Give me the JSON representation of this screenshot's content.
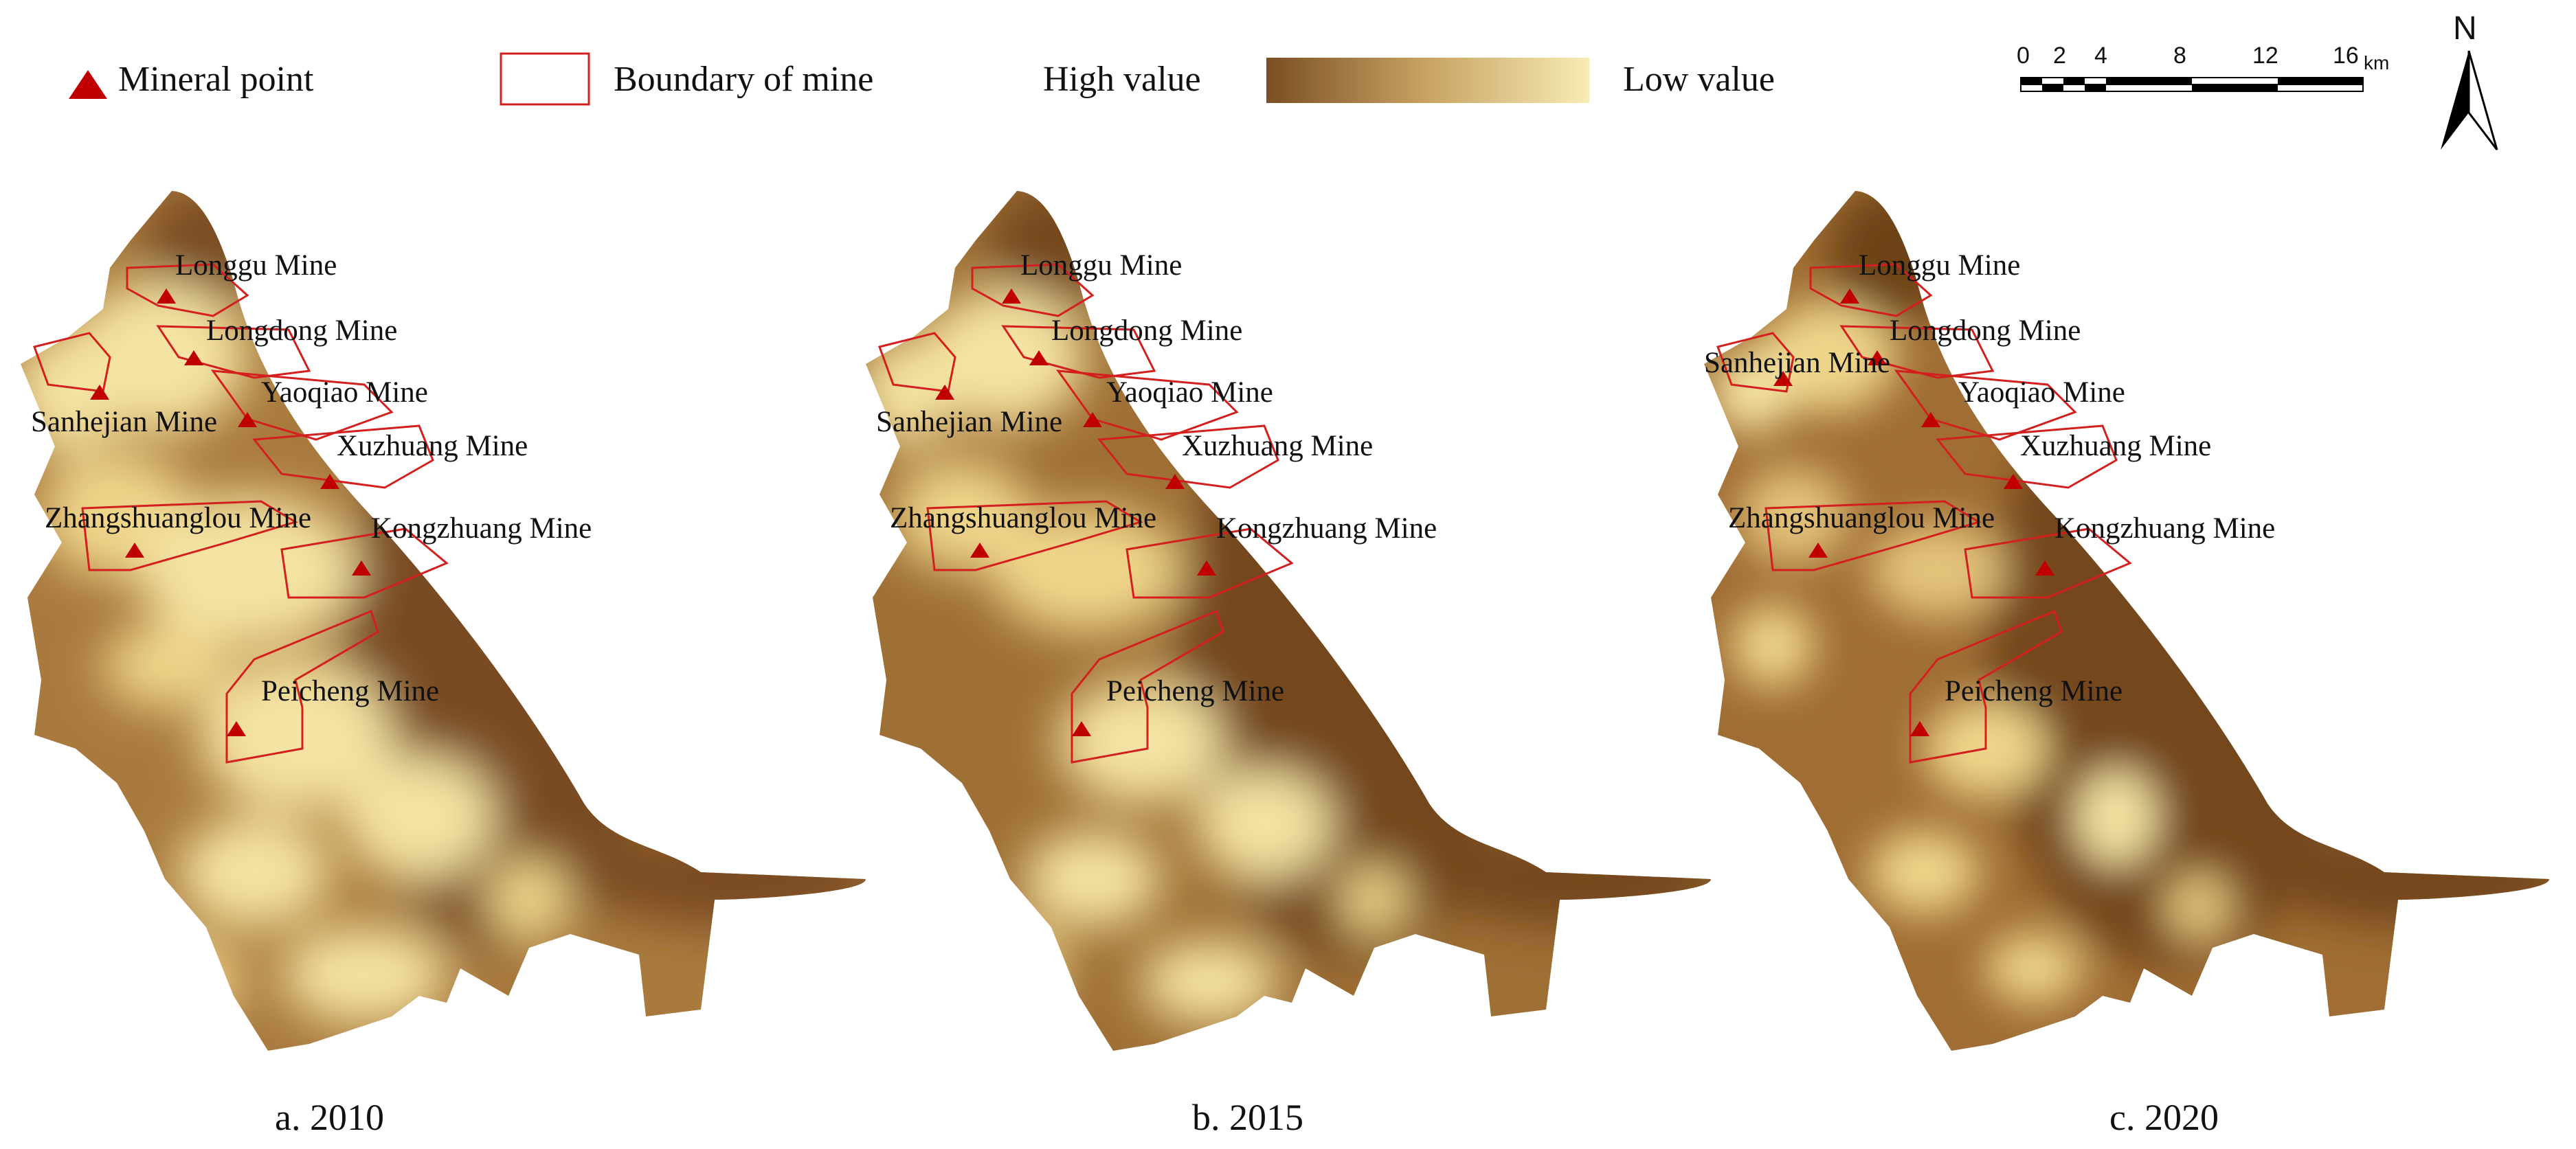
{
  "legend": {
    "mineral_point": "Mineral point",
    "boundary": "Boundary of mine",
    "high": "High value",
    "low": "Low value",
    "gradient_colors": [
      "#7a4f24",
      "#c9a464",
      "#f7ecb5"
    ],
    "marker_color": "#c00000",
    "boundary_color": "#d41f1f"
  },
  "scale_bar": {
    "ticks": [
      "0",
      "2",
      "4",
      "8",
      "12",
      "16"
    ],
    "unit": "km"
  },
  "north_arrow": {
    "label": "N"
  },
  "map_colors": {
    "dark": "#7a4c20",
    "mid": "#a97a3e",
    "light": "#f4e3a2"
  },
  "panels": [
    {
      "caption": "a. 2010"
    },
    {
      "caption": "b. 2015"
    },
    {
      "caption": "c. 2020"
    }
  ],
  "mines": {
    "longgu": "Longgu Mine",
    "longdong": "Longdong Mine",
    "yaoqiao": "Yaoqiao Mine",
    "sanhejian": "Sanhejian Mine",
    "xuzhuang": "Xuzhuang Mine",
    "zhangshuanglou": "Zhangshuanglou Mine",
    "kongzhuang": "Kongzhuang Mine",
    "peicheng": "Peicheng Mine"
  }
}
